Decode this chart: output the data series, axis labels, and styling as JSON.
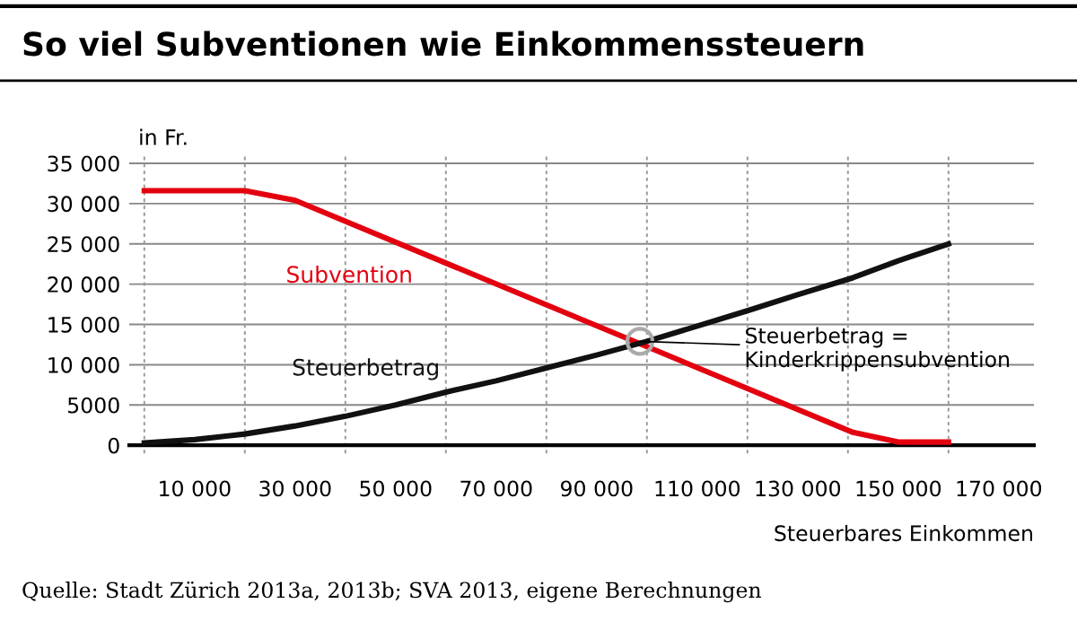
{
  "chart_data": {
    "type": "line",
    "title": "So viel Subventionen wie Einkommenssteuern",
    "xlabel": "Steuerbares Einkommen",
    "ylabel": "in Fr.",
    "x": [
      0,
      10000,
      20000,
      30000,
      40000,
      50000,
      60000,
      70000,
      80000,
      90000,
      100000,
      110000,
      120000,
      130000,
      141000,
      150000,
      160000
    ],
    "series": [
      {
        "name": "Subvention",
        "color": "#e3000f",
        "x": [
          0,
          20000,
          30000,
          141000,
          150000,
          160000
        ],
        "values": [
          31600,
          31600,
          30400,
          1600,
          400,
          400
        ]
      },
      {
        "name": "Steuerbetrag",
        "color": "#111111",
        "values": [
          300,
          700,
          1400,
          2400,
          3600,
          5000,
          6600,
          8000,
          9600,
          11200,
          12900,
          14800,
          16700,
          18700,
          20800,
          22900,
          25000
        ]
      }
    ],
    "xlim": [
      -3000,
      177000
    ],
    "ylim": [
      -1000,
      36000
    ],
    "xticks": [
      {
        "value": 0,
        "label": null
      },
      {
        "value": 10000,
        "label": "10 000"
      },
      {
        "value": 20000,
        "label": null
      },
      {
        "value": 30000,
        "label": "30 000"
      },
      {
        "value": 40000,
        "label": null
      },
      {
        "value": 50000,
        "label": "50 000"
      },
      {
        "value": 60000,
        "label": null
      },
      {
        "value": 70000,
        "label": "70 000"
      },
      {
        "value": 80000,
        "label": null
      },
      {
        "value": 90000,
        "label": "90 000"
      },
      {
        "value": 100000,
        "label": null
      },
      {
        "value": 110000,
        "label": "110 000"
      },
      {
        "value": 120000,
        "label": null
      },
      {
        "value": 130000,
        "label": "130 000"
      },
      {
        "value": 140000,
        "label": null
      },
      {
        "value": 150000,
        "label": "150 000"
      },
      {
        "value": 160000,
        "label": null
      },
      {
        "value": 170000,
        "label": "170 000"
      }
    ],
    "yticks": [
      0,
      5000,
      {
        "value": 10000,
        "label": "10 000"
      },
      {
        "value": 15000,
        "label": "15 000"
      },
      {
        "value": 20000,
        "label": "20 000"
      },
      {
        "value": 25000,
        "label": "25 000"
      },
      {
        "value": 30000,
        "label": "30 000"
      },
      {
        "value": 35000,
        "label": "35 000"
      }
    ],
    "grid": true,
    "legend": false,
    "marker": "none",
    "line_style": "solid",
    "annotations": [
      {
        "text": "Steuerbetrag =\nKinderkrippensubvention",
        "x": 98600,
        "y": 12900
      },
      "Quelle: Stadt Zürich 2013a, 2013b; SVA 2013, eigene Berechnungen"
    ]
  }
}
